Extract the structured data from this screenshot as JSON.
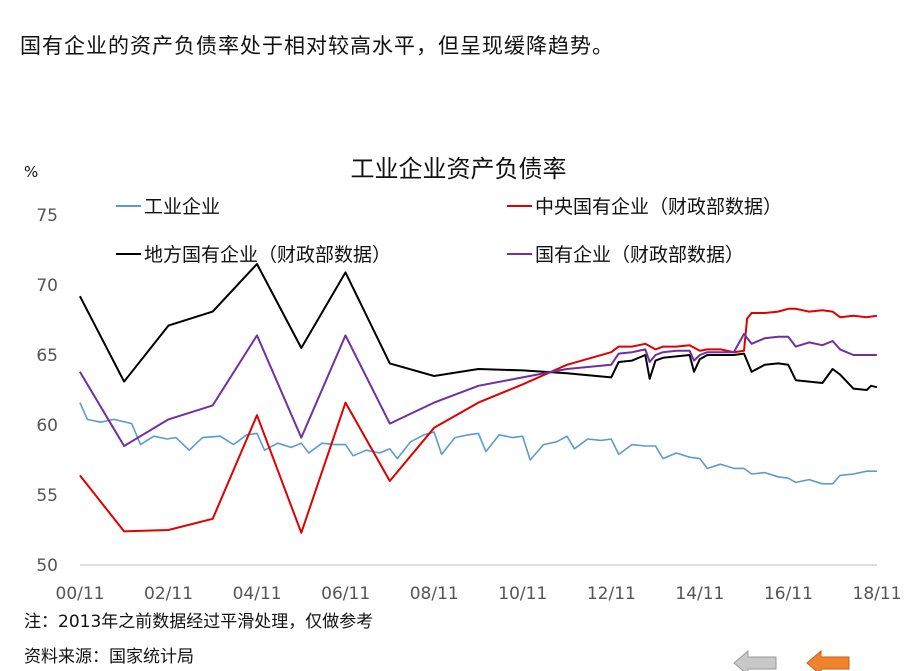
{
  "headline": "国有企业的资产负债率处于相对较高水平，但呈现缓降趋势。",
  "note": "注：2013年之前数据经过平滑处理，仅做参考",
  "source": "资料来源：国家统计局",
  "nav_icons": [
    "back-arrow-icon",
    "prev-arrow-icon"
  ],
  "chart_data": {
    "type": "line",
    "title": "工业企业资产负债率",
    "unit_label": "%",
    "ylim": [
      50,
      75
    ],
    "y_ticks": [
      "50",
      "55",
      "60",
      "65",
      "70",
      "75"
    ],
    "x_ticks": [
      "00/11",
      "02/11",
      "04/11",
      "06/11",
      "08/11",
      "10/11",
      "12/11",
      "14/11",
      "16/11",
      "18/11"
    ],
    "xlim": [
      2000.833,
      2018.833
    ],
    "grid": false,
    "legend_position": "top",
    "series": [
      {
        "name": "工业企业",
        "color": "#5b9bd5",
        "points": [
          [
            2000.83,
            61.6
          ],
          [
            2001.0,
            60.4
          ],
          [
            2001.3,
            60.2
          ],
          [
            2001.6,
            60.4
          ],
          [
            2002.0,
            60.1
          ],
          [
            2002.2,
            58.6
          ],
          [
            2002.5,
            59.2
          ],
          [
            2002.8,
            59.0
          ],
          [
            2003.0,
            59.1
          ],
          [
            2003.3,
            58.2
          ],
          [
            2003.6,
            59.1
          ],
          [
            2004.0,
            59.2
          ],
          [
            2004.3,
            58.6
          ],
          [
            2004.6,
            59.3
          ],
          [
            2004.83,
            59.4
          ],
          [
            2005.0,
            58.2
          ],
          [
            2005.3,
            58.7
          ],
          [
            2005.6,
            58.4
          ],
          [
            2005.83,
            58.7
          ],
          [
            2006.0,
            58.0
          ],
          [
            2006.3,
            58.7
          ],
          [
            2006.6,
            58.6
          ],
          [
            2006.83,
            58.6
          ],
          [
            2007.0,
            57.8
          ],
          [
            2007.3,
            58.2
          ],
          [
            2007.6,
            58.0
          ],
          [
            2007.83,
            58.3
          ],
          [
            2008.0,
            57.6
          ],
          [
            2008.3,
            58.8
          ],
          [
            2008.6,
            59.3
          ],
          [
            2008.83,
            59.5
          ],
          [
            2009.0,
            57.9
          ],
          [
            2009.3,
            59.1
          ],
          [
            2009.6,
            59.3
          ],
          [
            2009.83,
            59.4
          ],
          [
            2010.0,
            58.1
          ],
          [
            2010.3,
            59.3
          ],
          [
            2010.6,
            59.1
          ],
          [
            2010.83,
            59.2
          ],
          [
            2011.0,
            57.5
          ],
          [
            2011.3,
            58.6
          ],
          [
            2011.6,
            58.8
          ],
          [
            2011.83,
            59.2
          ],
          [
            2012.0,
            58.3
          ],
          [
            2012.3,
            59.0
          ],
          [
            2012.6,
            58.9
          ],
          [
            2012.83,
            59.0
          ],
          [
            2013.0,
            57.9
          ],
          [
            2013.3,
            58.6
          ],
          [
            2013.6,
            58.5
          ],
          [
            2013.83,
            58.5
          ],
          [
            2014.0,
            57.6
          ],
          [
            2014.3,
            58.0
          ],
          [
            2014.6,
            57.7
          ],
          [
            2014.83,
            57.6
          ],
          [
            2015.0,
            56.9
          ],
          [
            2015.3,
            57.2
          ],
          [
            2015.6,
            56.9
          ],
          [
            2015.83,
            56.9
          ],
          [
            2016.0,
            56.5
          ],
          [
            2016.3,
            56.6
          ],
          [
            2016.6,
            56.3
          ],
          [
            2016.83,
            56.2
          ],
          [
            2017.0,
            55.9
          ],
          [
            2017.3,
            56.1
          ],
          [
            2017.6,
            55.8
          ],
          [
            2017.83,
            55.8
          ],
          [
            2018.0,
            56.4
          ],
          [
            2018.3,
            56.5
          ],
          [
            2018.6,
            56.7
          ],
          [
            2018.83,
            56.7
          ]
        ]
      },
      {
        "name": "中央国有企业（财政部数据）",
        "color": "#e00000",
        "points": [
          [
            2000.83,
            56.4
          ],
          [
            2001.83,
            52.4
          ],
          [
            2002.83,
            52.5
          ],
          [
            2003.83,
            53.3
          ],
          [
            2004.83,
            60.7
          ],
          [
            2005.83,
            52.3
          ],
          [
            2006.83,
            61.6
          ],
          [
            2007.83,
            56.0
          ],
          [
            2008.83,
            59.8
          ],
          [
            2009.83,
            61.6
          ],
          [
            2010.83,
            62.9
          ],
          [
            2011.83,
            64.3
          ],
          [
            2012.83,
            65.2
          ],
          [
            2013.0,
            65.6
          ],
          [
            2013.3,
            65.6
          ],
          [
            2013.6,
            65.8
          ],
          [
            2013.83,
            65.4
          ],
          [
            2014.0,
            65.6
          ],
          [
            2014.3,
            65.6
          ],
          [
            2014.6,
            65.7
          ],
          [
            2014.83,
            65.3
          ],
          [
            2015.0,
            65.4
          ],
          [
            2015.3,
            65.4
          ],
          [
            2015.6,
            65.2
          ],
          [
            2015.83,
            65.3
          ],
          [
            2015.9,
            67.6
          ],
          [
            2016.0,
            68.0
          ],
          [
            2016.3,
            68.0
          ],
          [
            2016.6,
            68.1
          ],
          [
            2016.83,
            68.3
          ],
          [
            2017.0,
            68.3
          ],
          [
            2017.3,
            68.1
          ],
          [
            2017.6,
            68.2
          ],
          [
            2017.83,
            68.1
          ],
          [
            2018.0,
            67.7
          ],
          [
            2018.3,
            67.8
          ],
          [
            2018.6,
            67.7
          ],
          [
            2018.83,
            67.8
          ]
        ]
      },
      {
        "name": "地方国有企业（财政部数据）",
        "color": "#000000",
        "points": [
          [
            2000.83,
            69.2
          ],
          [
            2001.83,
            63.1
          ],
          [
            2002.83,
            67.1
          ],
          [
            2003.83,
            68.1
          ],
          [
            2004.83,
            71.5
          ],
          [
            2005.83,
            65.5
          ],
          [
            2006.83,
            70.9
          ],
          [
            2007.83,
            64.4
          ],
          [
            2008.83,
            63.5
          ],
          [
            2009.83,
            64.0
          ],
          [
            2010.83,
            63.9
          ],
          [
            2011.83,
            63.7
          ],
          [
            2012.83,
            63.4
          ],
          [
            2013.0,
            64.5
          ],
          [
            2013.3,
            64.6
          ],
          [
            2013.6,
            65.0
          ],
          [
            2013.7,
            63.3
          ],
          [
            2013.83,
            64.6
          ],
          [
            2014.0,
            64.8
          ],
          [
            2014.3,
            64.9
          ],
          [
            2014.6,
            65.0
          ],
          [
            2014.7,
            63.8
          ],
          [
            2014.83,
            64.7
          ],
          [
            2015.0,
            65.0
          ],
          [
            2015.3,
            65.0
          ],
          [
            2015.6,
            65.0
          ],
          [
            2015.83,
            65.1
          ],
          [
            2016.0,
            63.8
          ],
          [
            2016.3,
            64.3
          ],
          [
            2016.6,
            64.4
          ],
          [
            2016.83,
            64.3
          ],
          [
            2017.0,
            63.2
          ],
          [
            2017.3,
            63.1
          ],
          [
            2017.6,
            63.0
          ],
          [
            2017.83,
            64.0
          ],
          [
            2018.0,
            63.6
          ],
          [
            2018.3,
            62.6
          ],
          [
            2018.6,
            62.5
          ],
          [
            2018.7,
            62.8
          ],
          [
            2018.83,
            62.7
          ]
        ]
      },
      {
        "name": "国有企业（财政部数据）",
        "color": "#7030a0",
        "points": [
          [
            2000.83,
            63.8
          ],
          [
            2001.83,
            58.5
          ],
          [
            2002.83,
            60.4
          ],
          [
            2003.83,
            61.4
          ],
          [
            2004.83,
            66.4
          ],
          [
            2005.83,
            59.1
          ],
          [
            2006.83,
            66.4
          ],
          [
            2007.83,
            60.1
          ],
          [
            2008.83,
            61.6
          ],
          [
            2009.83,
            62.8
          ],
          [
            2010.83,
            63.4
          ],
          [
            2011.83,
            64.0
          ],
          [
            2012.83,
            64.3
          ],
          [
            2013.0,
            65.1
          ],
          [
            2013.3,
            65.2
          ],
          [
            2013.6,
            65.4
          ],
          [
            2013.7,
            64.5
          ],
          [
            2013.83,
            65.0
          ],
          [
            2014.0,
            65.2
          ],
          [
            2014.3,
            65.3
          ],
          [
            2014.6,
            65.3
          ],
          [
            2014.7,
            64.6
          ],
          [
            2014.83,
            65.0
          ],
          [
            2015.0,
            65.2
          ],
          [
            2015.3,
            65.2
          ],
          [
            2015.6,
            65.2
          ],
          [
            2015.83,
            66.5
          ],
          [
            2016.0,
            65.8
          ],
          [
            2016.3,
            66.2
          ],
          [
            2016.6,
            66.3
          ],
          [
            2016.83,
            66.3
          ],
          [
            2017.0,
            65.6
          ],
          [
            2017.3,
            65.9
          ],
          [
            2017.6,
            65.7
          ],
          [
            2017.83,
            66.0
          ],
          [
            2018.0,
            65.4
          ],
          [
            2018.3,
            65.0
          ],
          [
            2018.6,
            65.0
          ],
          [
            2018.83,
            65.0
          ]
        ]
      }
    ]
  }
}
